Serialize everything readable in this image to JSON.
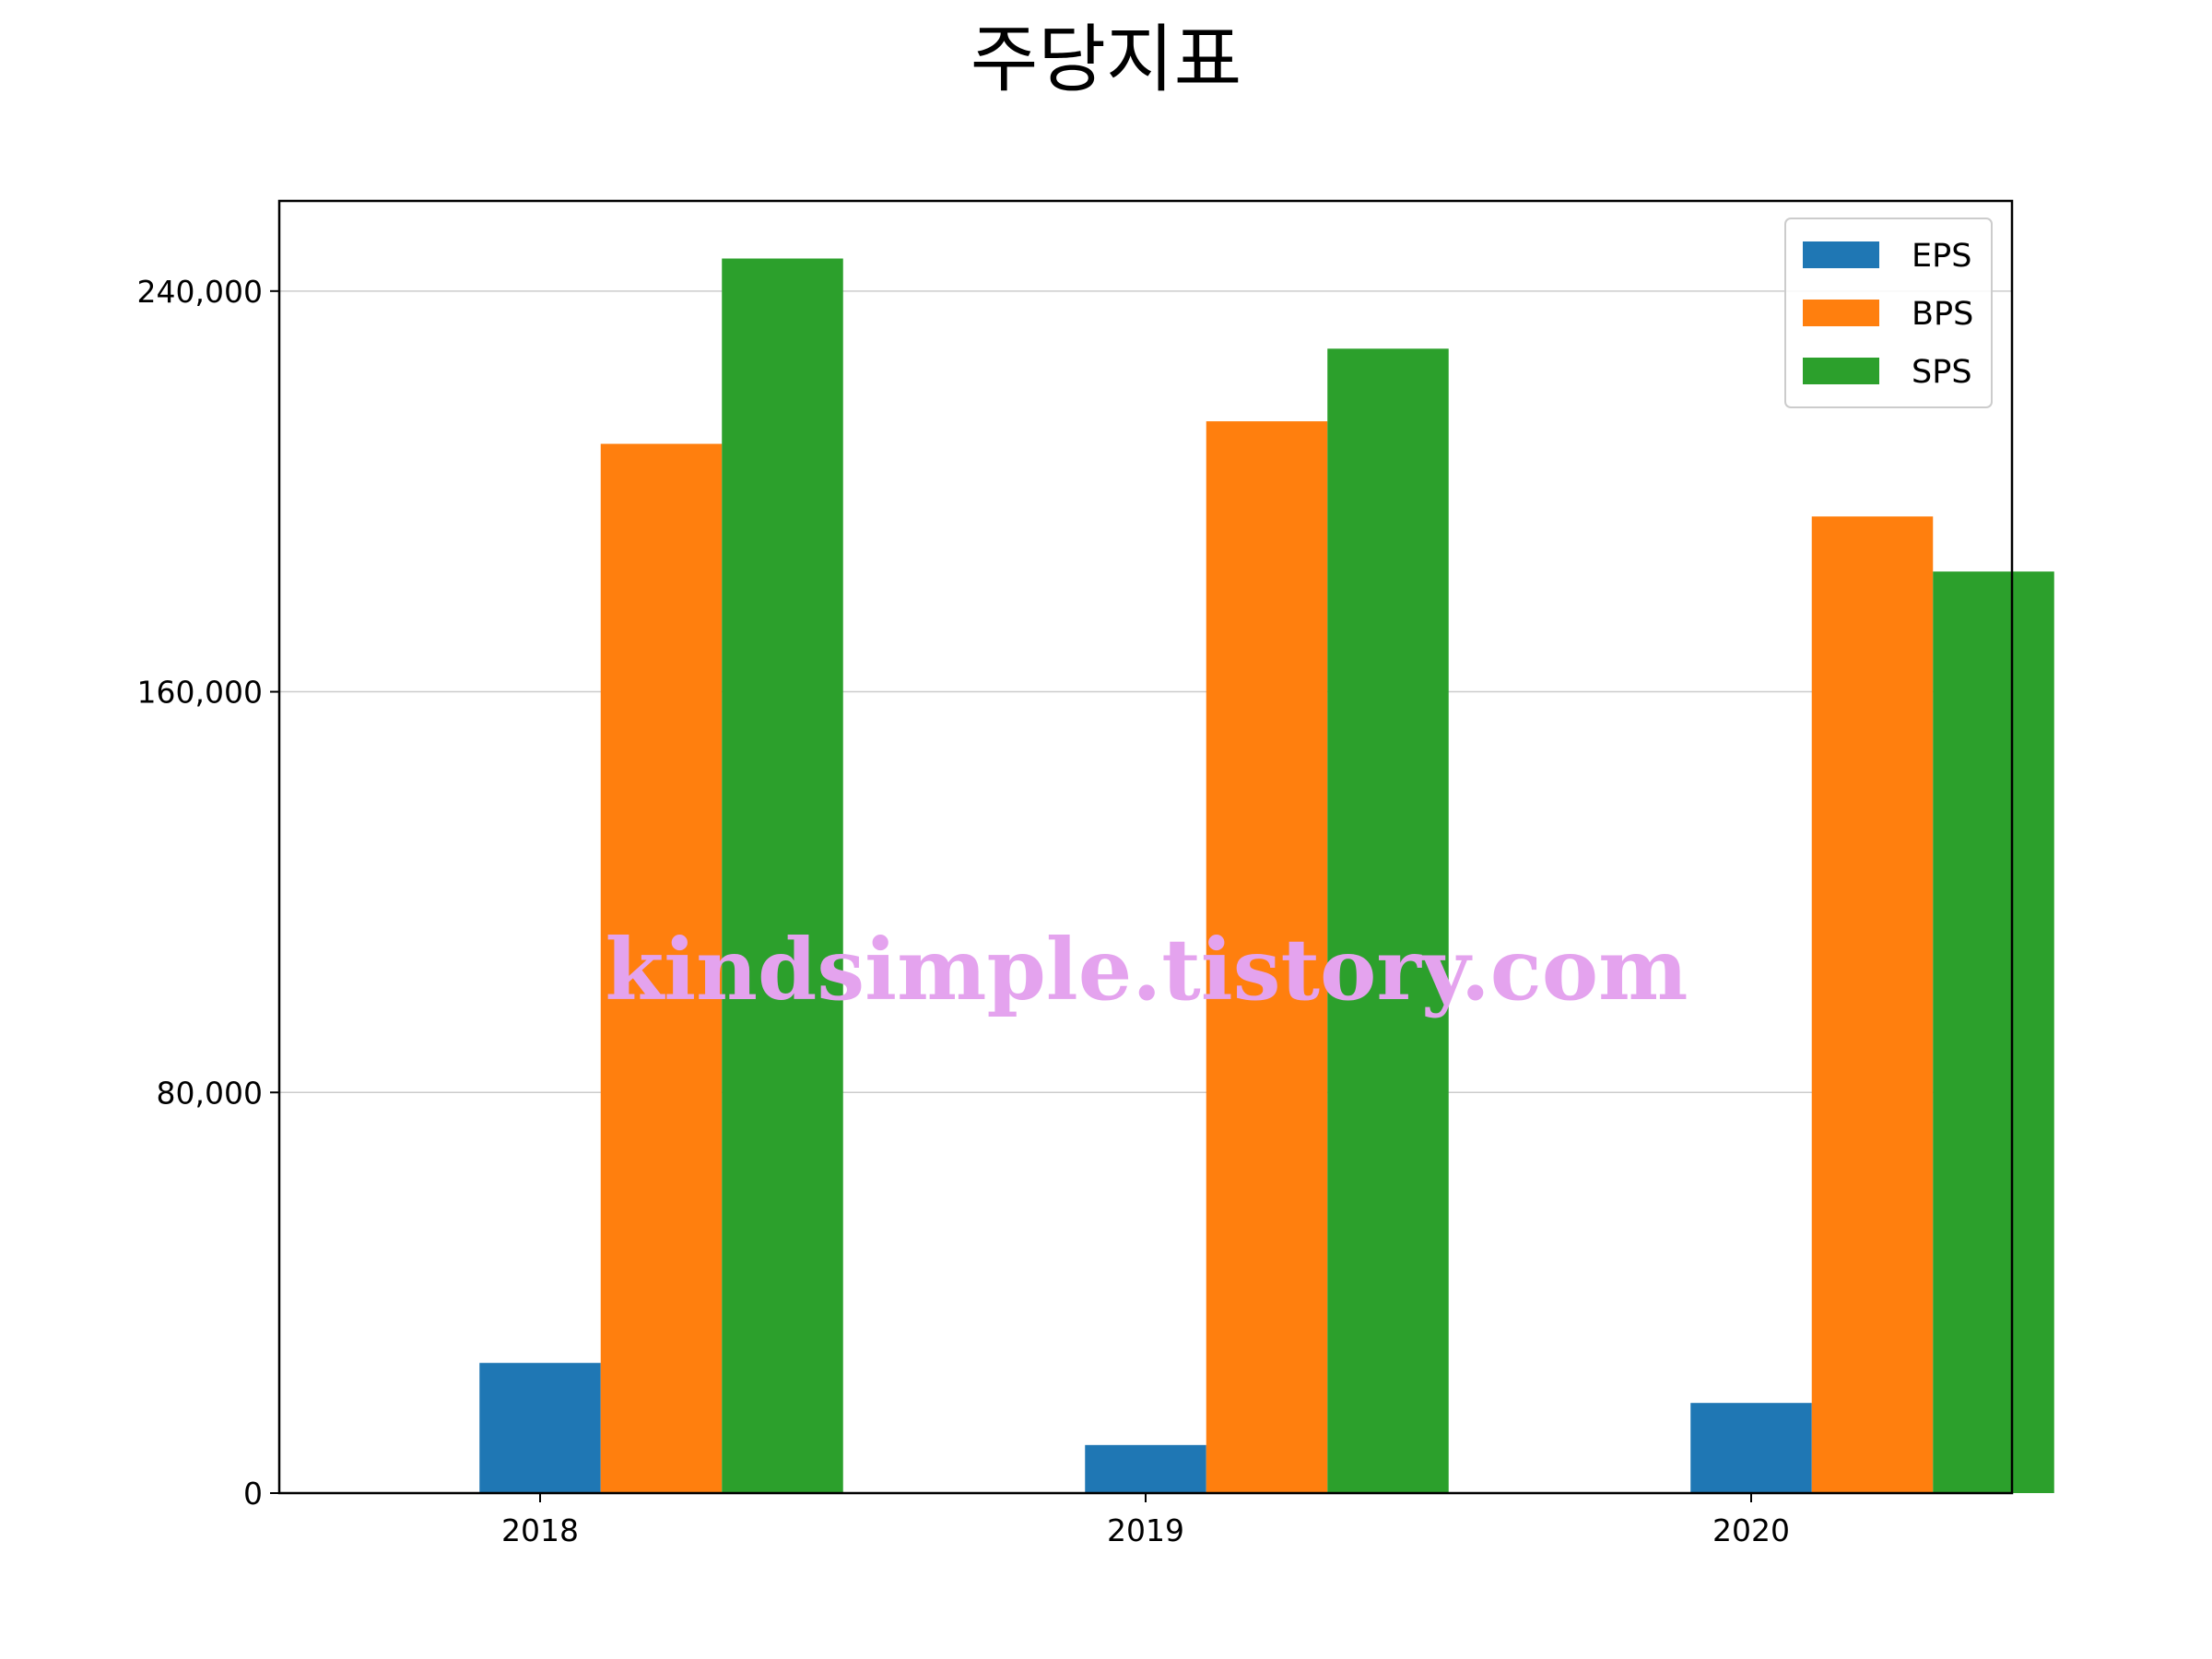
{
  "chart_data": {
    "type": "bar",
    "title": "주당지표",
    "xlabel": "",
    "ylabel": "",
    "categories": [
      "2018",
      "2019",
      "2020"
    ],
    "series": [
      {
        "name": "EPS",
        "color": "#1f77b4",
        "values": [
          26000,
          9600,
          18000
        ]
      },
      {
        "name": "BPS",
        "color": "#ff7f0e",
        "values": [
          209500,
          214000,
          195000
        ]
      },
      {
        "name": "SPS",
        "color": "#2ca02c",
        "values": [
          246500,
          228500,
          184000
        ]
      }
    ],
    "ylim": [
      0,
      258000
    ],
    "yticks": [
      0,
      80000,
      160000,
      240000
    ],
    "ytick_labels": [
      "0",
      "80,000",
      "160,000",
      "240,000"
    ],
    "grid": "y",
    "legend_position": "top-right"
  },
  "watermark": "kindsimple.tistory.com"
}
